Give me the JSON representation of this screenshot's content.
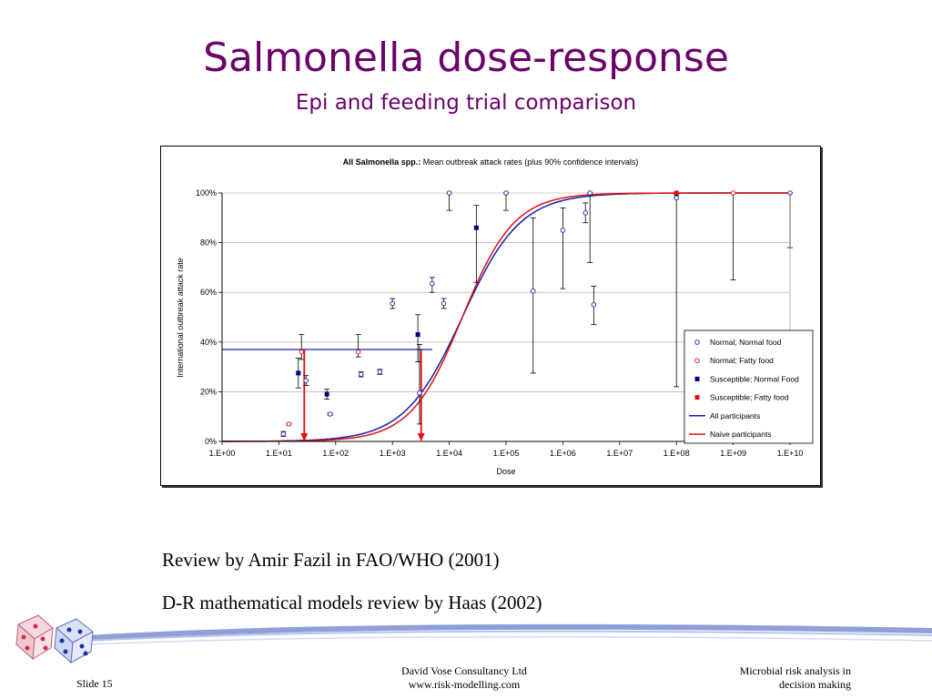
{
  "slide": {
    "title": "Salmonella dose-response",
    "subtitle": "Epi and feeding trial comparison",
    "references": [
      "Review by Amir Fazil in FAO/WHO (2001)",
      "D-R mathematical models review by Haas (2002)"
    ],
    "footer": {
      "slide_number": "Slide 15",
      "company": "David Vose Consultancy Ltd",
      "website": "www.risk-modelling.com",
      "topic_line1": "Microbial risk analysis in",
      "topic_line2": "decision making"
    }
  },
  "chart_data": {
    "type": "scatter",
    "title_bold": "All Salmonella spp.:",
    "title_rest": " Mean outbreak attack rates (plus 90% confidence intervals)",
    "xlabel": "Dose",
    "ylabel": "International outbreak attack rate",
    "x_scale": "log",
    "xlim": [
      1,
      10000000000
    ],
    "ylim": [
      0,
      1
    ],
    "x_ticks": [
      "1.E+00",
      "1.E+01",
      "1.E+02",
      "1.E+03",
      "1.E+04",
      "1.E+05",
      "1.E+06",
      "1.E+07",
      "1.E+08",
      "1.E+09",
      "1.E+10"
    ],
    "y_ticks": [
      "0%",
      "20%",
      "40%",
      "60%",
      "80%",
      "100%"
    ],
    "legend_position": "right",
    "colors": {
      "blue": "#1c1cb0",
      "red": "#e01010",
      "navy": "#000080",
      "title": "#6b006b"
    },
    "series": [
      {
        "name": "Normal; Normal food",
        "marker": "open-circle",
        "color": "#1c1cb0",
        "points": [
          {
            "x": 12,
            "y": 0.03,
            "lo": 0.02,
            "hi": 0.04
          },
          {
            "x": 30,
            "y": 0.245,
            "lo": 0.225,
            "hi": 0.265
          },
          {
            "x": 80,
            "y": 0.11,
            "lo": 0.105,
            "hi": 0.115
          },
          {
            "x": 280,
            "y": 0.27,
            "lo": 0.26,
            "hi": 0.28
          },
          {
            "x": 600,
            "y": 0.28,
            "lo": 0.27,
            "hi": 0.29
          },
          {
            "x": 1000,
            "y": 0.555,
            "lo": 0.535,
            "hi": 0.575
          },
          {
            "x": 3000,
            "y": 0.195,
            "lo": 0.07,
            "hi": 0.39
          },
          {
            "x": 5000,
            "y": 0.635,
            "lo": 0.6,
            "hi": 0.66
          },
          {
            "x": 8000,
            "y": 0.555,
            "lo": 0.535,
            "hi": 0.575
          },
          {
            "x": 10000,
            "y": 1.0,
            "lo": 0.93,
            "hi": 1.0
          },
          {
            "x": 100000,
            "y": 1.0,
            "lo": 0.93,
            "hi": 1.0
          },
          {
            "x": 300000,
            "y": 0.605,
            "lo": 0.275,
            "hi": 0.9
          },
          {
            "x": 1000000,
            "y": 0.85,
            "lo": 0.615,
            "hi": 0.94
          },
          {
            "x": 2500000,
            "y": 0.92,
            "lo": 0.88,
            "hi": 0.96
          },
          {
            "x": 3000000,
            "y": 1.0,
            "lo": 0.72,
            "hi": 1.0
          },
          {
            "x": 3500000,
            "y": 0.55,
            "lo": 0.47,
            "hi": 0.625
          },
          {
            "x": 100000000,
            "y": 0.98,
            "lo": 0.22,
            "hi": 1.0
          },
          {
            "x": 10000000000,
            "y": 1.0,
            "lo": 0.78,
            "hi": 1.0
          }
        ]
      },
      {
        "name": "Normal; Fatty food",
        "marker": "open-circle",
        "color": "#e01010",
        "points": [
          {
            "x": 15,
            "y": 0.07,
            "lo": 0.065,
            "hi": 0.075
          },
          {
            "x": 25,
            "y": 0.36,
            "lo": 0.33,
            "hi": 0.43
          },
          {
            "x": 250,
            "y": 0.36,
            "lo": 0.34,
            "hi": 0.43
          },
          {
            "x": 1000000000,
            "y": 1.0,
            "lo": 0.65,
            "hi": 1.0
          }
        ]
      },
      {
        "name": "Susceptible; Normal Food",
        "marker": "filled-square",
        "color": "#000080",
        "points": [
          {
            "x": 22,
            "y": 0.275,
            "lo": 0.215,
            "hi": 0.335
          },
          {
            "x": 70,
            "y": 0.19,
            "lo": 0.17,
            "hi": 0.21
          },
          {
            "x": 2800,
            "y": 0.43,
            "lo": 0.32,
            "hi": 0.51
          },
          {
            "x": 30000,
            "y": 0.86,
            "lo": 0.64,
            "hi": 0.95
          }
        ]
      },
      {
        "name": "Susceptible; Fatty food",
        "marker": "filled-square",
        "color": "#e01010",
        "points": [
          {
            "x": 100000000,
            "y": 1.0,
            "lo": 0.99,
            "hi": 1.0
          }
        ]
      },
      {
        "name": "All participants",
        "marker": "line",
        "color": "#1c1cb0",
        "curve": {
          "k": 0.85,
          "x50": 17000
        }
      },
      {
        "name": "Naive participants",
        "marker": "line",
        "color": "#e01010",
        "curve": {
          "k": 0.95,
          "x50": 17000
        }
      }
    ],
    "annotations": {
      "reference_level": 0.37,
      "reference_line_end_dose": 5000,
      "down_arrow_doses": [
        28,
        3200
      ]
    }
  }
}
